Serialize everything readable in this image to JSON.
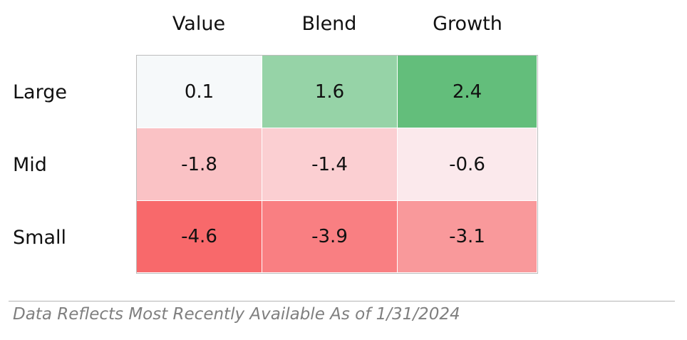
{
  "chart_data": {
    "type": "heatmap",
    "columns": [
      "Value",
      "Blend",
      "Growth"
    ],
    "rows": [
      "Large",
      "Mid",
      "Small"
    ],
    "values": [
      [
        0.1,
        1.6,
        2.4
      ],
      [
        -1.8,
        -1.4,
        -0.6
      ],
      [
        -4.6,
        -3.9,
        -3.1
      ]
    ],
    "value_labels": [
      [
        "0.1",
        "1.6",
        "2.4"
      ],
      [
        "-1.8",
        "-1.4",
        "-0.6"
      ],
      [
        "-4.6",
        "-3.9",
        "-3.1"
      ]
    ],
    "color_scale": {
      "negative": "#f8696b",
      "neutral": "#fcfcff",
      "positive": "#63be7b"
    }
  },
  "footnote": "Data Reflects Most Recently Available As of 1/31/2024"
}
